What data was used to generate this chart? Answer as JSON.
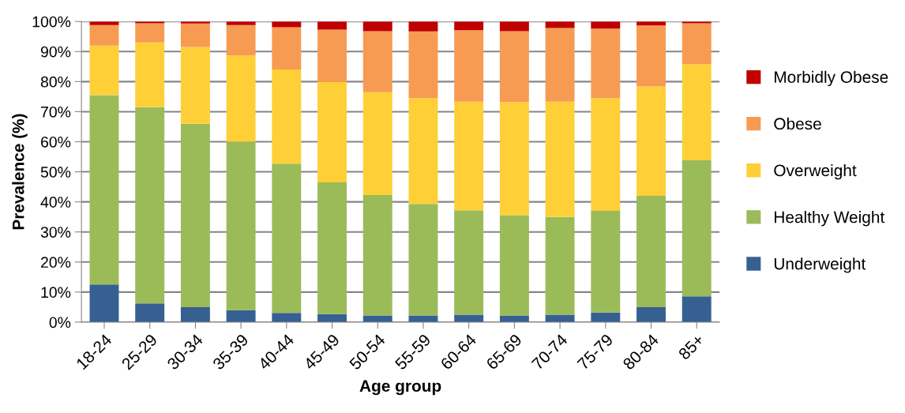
{
  "chart_data": {
    "type": "bar",
    "stacked": true,
    "xlabel": "Age group",
    "ylabel": "Prevalence (%)",
    "categories": [
      "18-24",
      "25-29",
      "30-34",
      "35-39",
      "40-44",
      "45-49",
      "50-54",
      "55-59",
      "60-64",
      "65-69",
      "70-74",
      "75-79",
      "80-84",
      "85+"
    ],
    "series": [
      {
        "name": "Underweight",
        "color": "#376092",
        "values": [
          12.5,
          6.2,
          5,
          4,
          3.1,
          2.7,
          2.2,
          2.2,
          2.5,
          2.2,
          2.5,
          3.2,
          5,
          8.6
        ]
      },
      {
        "name": "Healthy Weight",
        "color": "#9bbb59",
        "values": [
          63,
          65.3,
          61,
          56,
          49.6,
          43.8,
          40.1,
          37.1,
          34.7,
          33.4,
          32.5,
          33.8,
          37,
          45.2
        ]
      },
      {
        "name": "Overweight",
        "color": "#ffcf37",
        "values": [
          16.5,
          21.5,
          25.5,
          28.7,
          31.3,
          33.3,
          34.2,
          35.2,
          36.1,
          37.6,
          38.3,
          37.5,
          36.4,
          32
        ]
      },
      {
        "name": "Obese",
        "color": "#f79b53",
        "values": [
          6.8,
          6.4,
          7.8,
          10.1,
          14.1,
          17.5,
          20.3,
          22.2,
          23.8,
          23.6,
          24.5,
          23.1,
          20.3,
          13.6
        ]
      },
      {
        "name": "Morbidly Obese",
        "color": "#c00000",
        "values": [
          1.2,
          0.6,
          0.7,
          1.2,
          1.9,
          2.7,
          3.2,
          3.3,
          2.9,
          3.2,
          2.2,
          2.4,
          1.3,
          0.6
        ]
      }
    ],
    "ylim": [
      0,
      100
    ],
    "yticks": [
      {
        "value": 0,
        "label": "0%"
      },
      {
        "value": 10,
        "label": "10%"
      },
      {
        "value": 20,
        "label": "20%"
      },
      {
        "value": 30,
        "label": "30%"
      },
      {
        "value": 40,
        "label": "40%"
      },
      {
        "value": 50,
        "label": "50%"
      },
      {
        "value": 60,
        "label": "60%"
      },
      {
        "value": 70,
        "label": "70%"
      },
      {
        "value": 80,
        "label": "80%"
      },
      {
        "value": 90,
        "label": "90%"
      },
      {
        "value": 100,
        "label": "100%"
      }
    ],
    "grid": "y",
    "legend": "right"
  }
}
